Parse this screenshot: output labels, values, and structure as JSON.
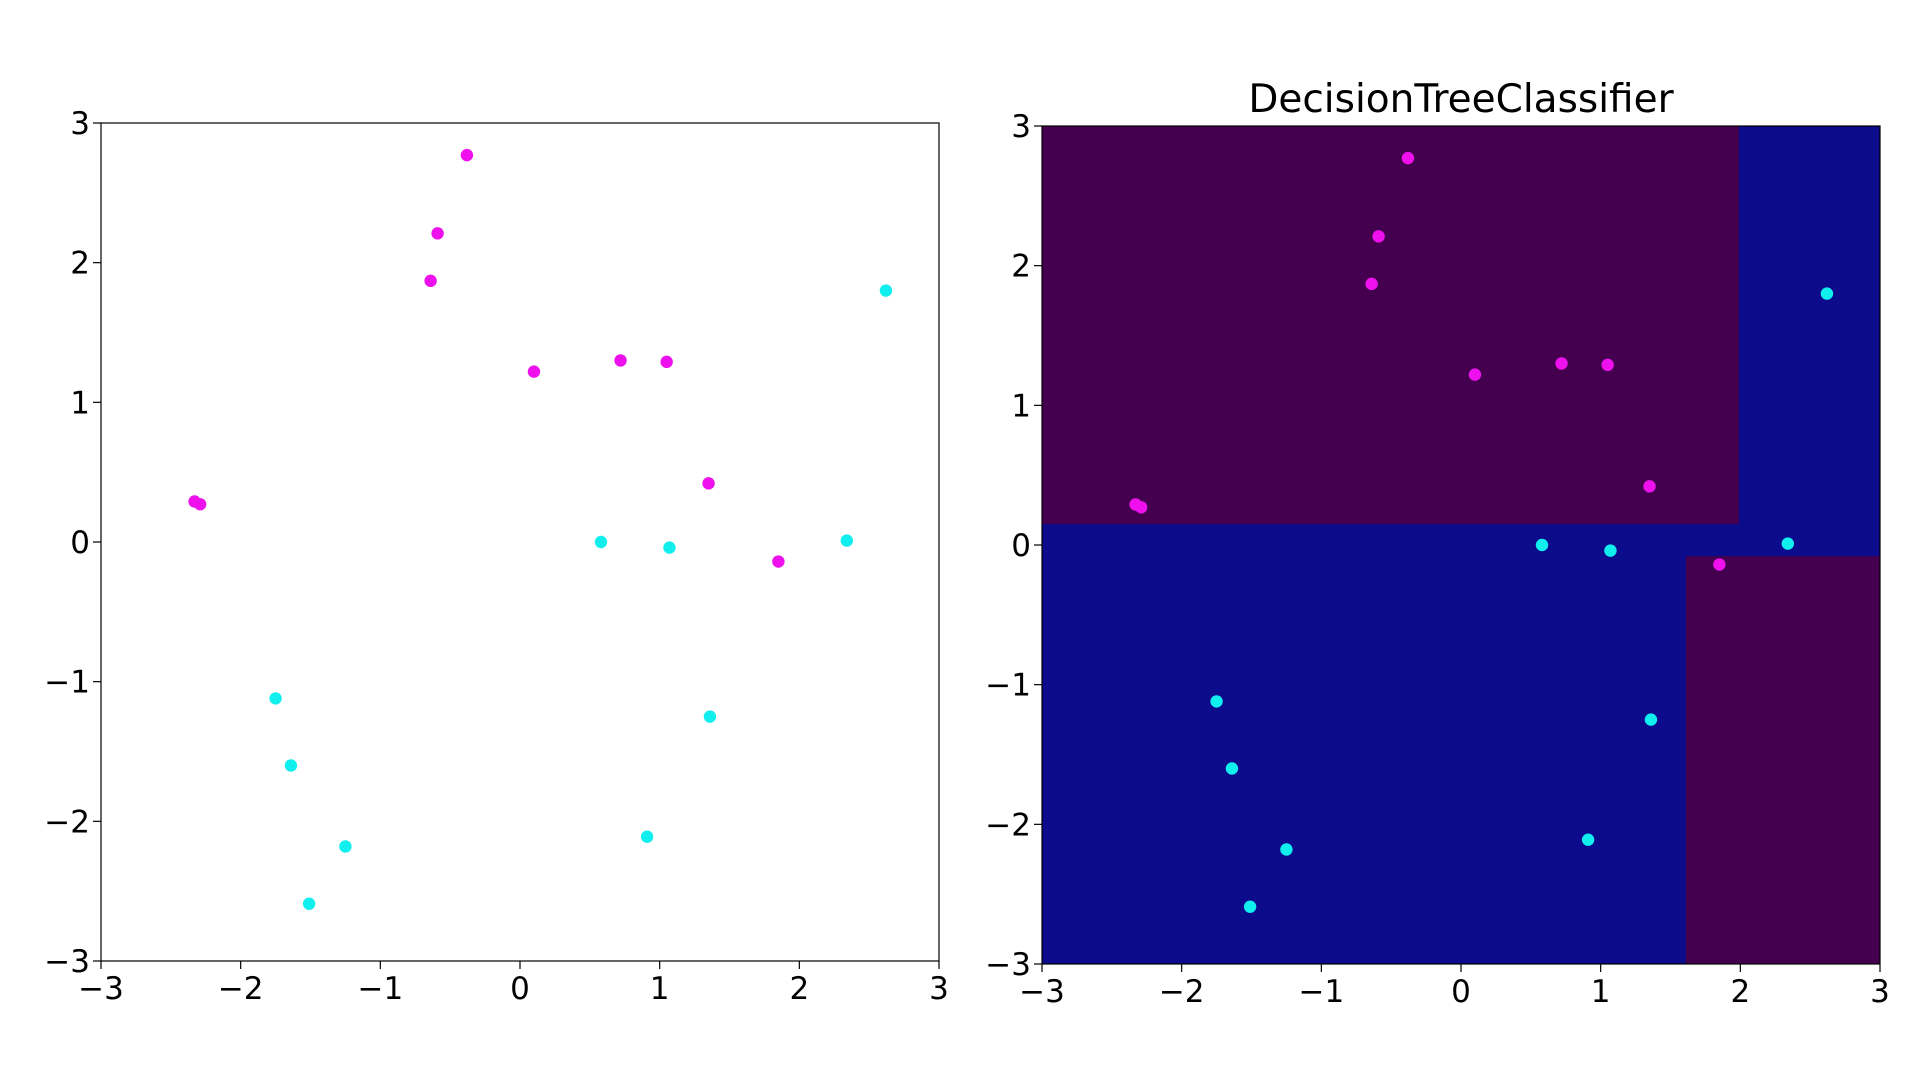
{
  "chart_data": [
    {
      "type": "scatter",
      "title": "",
      "xlabel": "",
      "ylabel": "",
      "xlim": [
        -3,
        3
      ],
      "ylim": [
        -3,
        3
      ],
      "x_ticks": [
        -3,
        -2,
        -1,
        0,
        1,
        2,
        3
      ],
      "y_ticks": [
        -3,
        -2,
        -1,
        0,
        1,
        2,
        3
      ],
      "x_tick_labels": [
        "−3",
        "−2",
        "−1",
        "0",
        "1",
        "2",
        "3"
      ],
      "y_tick_labels": [
        "−3",
        "−2",
        "−1",
        "0",
        "1",
        "2",
        "3"
      ],
      "grid": false,
      "background_color": "#ffffff",
      "series": [
        {
          "color": "#ee11ee",
          "points": [
            [
              -0.38,
              2.77
            ],
            [
              -0.59,
              2.21
            ],
            [
              -0.64,
              1.87
            ],
            [
              0.1,
              1.22
            ],
            [
              0.72,
              1.3
            ],
            [
              1.05,
              1.29
            ],
            [
              1.35,
              0.42
            ],
            [
              1.85,
              -0.14
            ],
            [
              -2.33,
              0.29
            ],
            [
              -2.29,
              0.27
            ]
          ]
        },
        {
          "color": "#11eeee",
          "points": [
            [
              2.62,
              1.8
            ],
            [
              0.58,
              0.0
            ],
            [
              1.07,
              -0.04
            ],
            [
              2.34,
              0.01
            ],
            [
              -1.75,
              -1.12
            ],
            [
              -1.64,
              -1.6
            ],
            [
              1.36,
              -1.25
            ],
            [
              -1.25,
              -2.18
            ],
            [
              0.91,
              -2.11
            ],
            [
              -1.51,
              -2.59
            ]
          ]
        }
      ]
    },
    {
      "type": "scatter",
      "title": "DecisionTreeClassifier",
      "xlabel": "",
      "ylabel": "",
      "xlim": [
        -3,
        3
      ],
      "ylim": [
        -3,
        3
      ],
      "x_ticks": [
        -3,
        -2,
        -1,
        0,
        1,
        2,
        3
      ],
      "y_ticks": [
        -3,
        -2,
        -1,
        0,
        1,
        2,
        3
      ],
      "x_tick_labels": [
        "−3",
        "−2",
        "−1",
        "0",
        "1",
        "2",
        "3"
      ],
      "y_tick_labels": [
        "−3",
        "−2",
        "−1",
        "0",
        "1",
        "2",
        "3"
      ],
      "grid": false,
      "background_color": "#0b0b8c",
      "decision_regions": [
        {
          "x": [
            -3,
            1.99
          ],
          "y": [
            0.15,
            3
          ],
          "color": "#44004e"
        },
        {
          "x": [
            1.61,
            3
          ],
          "y": [
            -3,
            -0.08
          ],
          "color": "#44004e"
        }
      ],
      "series": [
        {
          "color": "#ee11ee",
          "points": [
            [
              -0.38,
              2.77
            ],
            [
              -0.59,
              2.21
            ],
            [
              -0.64,
              1.87
            ],
            [
              0.1,
              1.22
            ],
            [
              0.72,
              1.3
            ],
            [
              1.05,
              1.29
            ],
            [
              1.35,
              0.42
            ],
            [
              1.85,
              -0.14
            ],
            [
              -2.33,
              0.29
            ],
            [
              -2.29,
              0.27
            ]
          ]
        },
        {
          "color": "#11eeee",
          "points": [
            [
              2.62,
              1.8
            ],
            [
              0.58,
              0.0
            ],
            [
              1.07,
              -0.04
            ],
            [
              2.34,
              0.01
            ],
            [
              -1.75,
              -1.12
            ],
            [
              -1.64,
              -1.6
            ],
            [
              1.36,
              -1.25
            ],
            [
              -1.25,
              -2.18
            ],
            [
              0.91,
              -2.11
            ],
            [
              -1.51,
              -2.59
            ]
          ]
        }
      ]
    }
  ]
}
